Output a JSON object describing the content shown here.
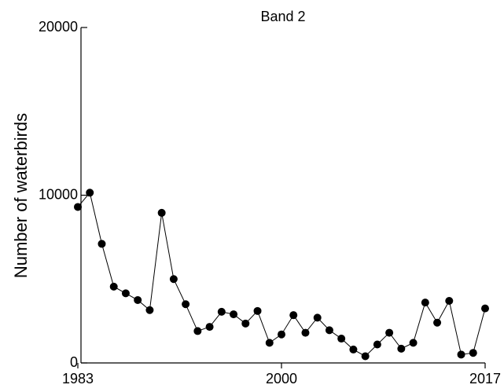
{
  "chart_data": {
    "type": "line",
    "title": "Band 2",
    "y_label": "Number of waterbirds",
    "x": [
      1983,
      1984,
      1985,
      1986,
      1987,
      1988,
      1989,
      1990,
      1991,
      1992,
      1993,
      1994,
      1995,
      1996,
      1997,
      1998,
      1999,
      2000,
      2001,
      2002,
      2003,
      2004,
      2005,
      2006,
      2007,
      2008,
      2009,
      2010,
      2011,
      2012,
      2013,
      2014,
      2015,
      2016,
      2017
    ],
    "series": [
      {
        "name": "Band 2",
        "color": "#000000",
        "values": [
          9300,
          10150,
          7100,
          4550,
          4150,
          3750,
          3150,
          8950,
          5000,
          3500,
          1900,
          2150,
          3050,
          2900,
          2350,
          3100,
          1200,
          1700,
          2850,
          1800,
          2700,
          1950,
          1450,
          800,
          400,
          1100,
          1800,
          850,
          1200,
          3600,
          2400,
          3700,
          500,
          600,
          3250
        ]
      }
    ],
    "xlim": [
      1983,
      2017
    ],
    "xticks": [
      1983,
      2000,
      2017
    ],
    "ylim": [
      0,
      20000
    ],
    "yticks": [
      0,
      10000,
      20000
    ],
    "grid": false
  }
}
